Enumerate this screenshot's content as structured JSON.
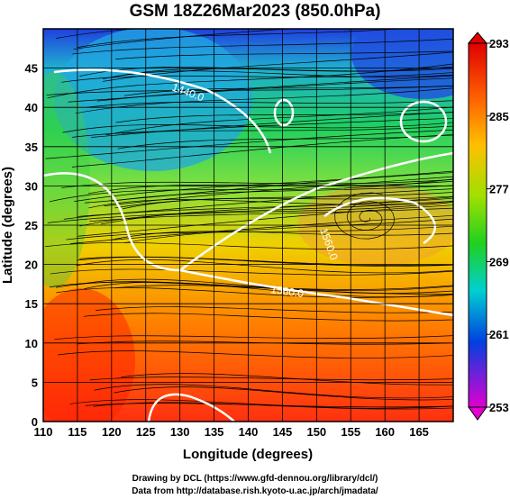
{
  "title": "GSM 18Z26Mar2023 (850.0hPa)",
  "chart_data": {
    "type": "heatmap",
    "title": "GSM 18Z26Mar2023 (850.0hPa)",
    "xlabel": "Longitude (degrees)",
    "ylabel": "Latitude  (degrees)",
    "xlim": [
      110,
      170
    ],
    "ylim": [
      0,
      50
    ],
    "x_ticks": [
      "110",
      "115",
      "120",
      "125",
      "130",
      "135",
      "140",
      "145",
      "150",
      "155",
      "160",
      "165"
    ],
    "y_ticks": [
      "0",
      "5",
      "10",
      "15",
      "20",
      "25",
      "30",
      "35",
      "40",
      "45"
    ],
    "grid": true,
    "colorbar": {
      "labels": [
        "293",
        "285",
        "277",
        "269",
        "261",
        "253"
      ],
      "min": 253,
      "max": 293,
      "placement": "right"
    },
    "contour_labels": [
      "1440.0",
      "1560.0",
      "1560.0"
    ],
    "colors": {
      "cold": "#c000c0",
      "cool": "#0000d0",
      "mid": "#20d040",
      "warm": "#f0c000",
      "hot": "#e02000"
    }
  },
  "credits": [
    "Drawing by DCL (https://www.gfd-dennou.org/library/dcl/)",
    "Data from http://database.rish.kyoto-u.ac.jp/arch/jmadata/"
  ]
}
